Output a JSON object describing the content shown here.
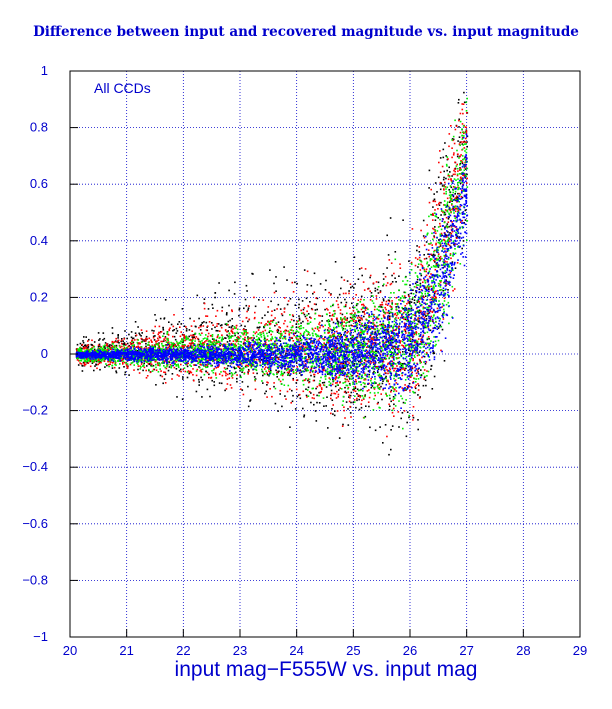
{
  "chart_data": {
    "type": "scatter",
    "title": "Difference between input and recovered magnitude vs. input magnitude",
    "annotation": "All CCDs",
    "xlabel": "input mag−F555W vs. input mag",
    "ylabel": "",
    "xlim": [
      20,
      29
    ],
    "ylim": [
      -1,
      1
    ],
    "xticks": [
      20,
      21,
      22,
      23,
      24,
      25,
      26,
      27,
      28,
      29
    ],
    "yticks": [
      -1,
      -0.8,
      -0.6,
      -0.4,
      -0.2,
      0,
      0.2,
      0.4,
      0.6,
      0.8,
      1
    ],
    "ytick_labels": [
      "−1",
      "−0.8",
      "−0.6",
      "−0.4",
      "−0.2",
      "0",
      "0.2",
      "0.4",
      "0.6",
      "0.8",
      "1"
    ],
    "grid": true,
    "colors": {
      "axis": "#0000cc",
      "grid": "#0000cc",
      "background": "#ffffff",
      "frame": "#000000"
    },
    "series": [
      {
        "color": "#000000",
        "x": [
          20.1,
          20.5,
          21.0,
          21.5,
          22.0,
          22.5,
          23.0,
          23.5,
          24.0,
          24.5,
          25.0,
          25.5,
          26.0,
          26.5,
          27.0
        ],
        "y": [
          0.0,
          0.01,
          0.02,
          0.02,
          0.03,
          0.03,
          0.03,
          0.03,
          0.02,
          0.02,
          0.03,
          0.04,
          0.05,
          0.35,
          0.7
        ],
        "spread": [
          0.05,
          0.06,
          0.08,
          0.12,
          0.15,
          0.18,
          0.2,
          0.22,
          0.25,
          0.27,
          0.28,
          0.3,
          0.32,
          0.35,
          0.3
        ]
      },
      {
        "color": "#ff0000",
        "x": [
          20.1,
          20.5,
          21.0,
          21.5,
          22.0,
          22.5,
          23.0,
          23.5,
          24.0,
          24.5,
          25.0,
          25.5,
          26.0,
          26.5,
          27.0
        ],
        "y": [
          0.0,
          0.0,
          0.01,
          0.01,
          0.02,
          0.02,
          0.02,
          0.02,
          0.02,
          0.02,
          0.03,
          0.04,
          0.05,
          0.35,
          0.75
        ],
        "spread": [
          0.03,
          0.04,
          0.06,
          0.08,
          0.1,
          0.12,
          0.14,
          0.16,
          0.18,
          0.2,
          0.22,
          0.24,
          0.26,
          0.3,
          0.25
        ]
      },
      {
        "color": "#00ee00",
        "x": [
          20.1,
          20.5,
          21.0,
          21.5,
          22.0,
          22.5,
          23.0,
          23.5,
          24.0,
          24.5,
          25.0,
          25.5,
          26.0,
          26.5,
          27.0
        ],
        "y": [
          0.0,
          0.0,
          0.0,
          0.0,
          0.01,
          0.01,
          0.01,
          0.01,
          0.01,
          0.01,
          0.02,
          0.03,
          0.05,
          0.3,
          0.7
        ],
        "spread": [
          0.02,
          0.03,
          0.04,
          0.05,
          0.06,
          0.07,
          0.08,
          0.1,
          0.12,
          0.14,
          0.16,
          0.2,
          0.25,
          0.28,
          0.25
        ]
      },
      {
        "color": "#0000ff",
        "x": [
          20.1,
          20.5,
          21.0,
          21.5,
          22.0,
          22.5,
          23.0,
          23.5,
          24.0,
          24.5,
          25.0,
          25.5,
          26.0,
          26.5,
          27.0
        ],
        "y": [
          0.0,
          0.0,
          0.0,
          0.0,
          0.0,
          0.0,
          0.0,
          0.0,
          0.0,
          0.0,
          0.01,
          0.02,
          0.04,
          0.25,
          0.6
        ],
        "spread": [
          0.01,
          0.015,
          0.02,
          0.025,
          0.03,
          0.035,
          0.04,
          0.05,
          0.06,
          0.08,
          0.1,
          0.13,
          0.18,
          0.22,
          0.2
        ]
      }
    ]
  }
}
